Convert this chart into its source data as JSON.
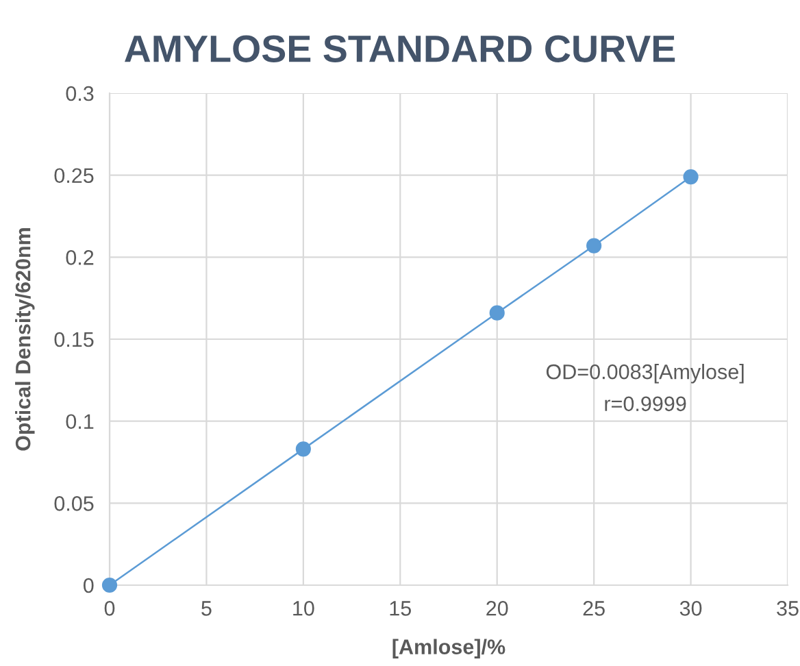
{
  "chart_data": {
    "type": "line",
    "title": "AMYLOSE STANDARD CURVE",
    "xlabel": "[Amlose]/%",
    "ylabel": "Optical Density/620nm",
    "x": [
      0,
      10,
      20,
      25,
      30
    ],
    "series": [
      {
        "color": "#5b9bd5",
        "values": [
          0,
          0.083,
          0.166,
          0.207,
          0.249
        ]
      }
    ],
    "marker": "circle",
    "line_style": "solid",
    "xlim": [
      0,
      35
    ],
    "xticks": [
      0,
      5,
      10,
      15,
      20,
      25,
      30,
      35
    ],
    "ylim": [
      0,
      0.3
    ],
    "yticks": [
      0,
      0.05,
      0.1,
      0.15,
      0.2,
      0.25,
      0.3
    ],
    "grid": true,
    "annotations": [
      "OD=0.0083[Amylose]",
      "r=0.9999"
    ]
  }
}
